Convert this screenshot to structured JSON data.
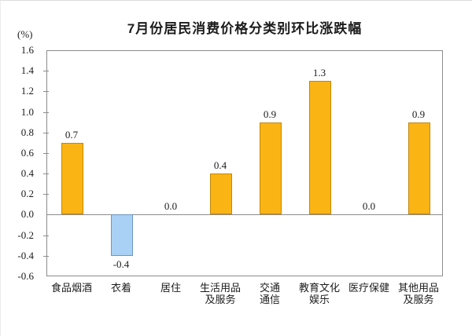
{
  "chart_data": {
    "type": "bar",
    "title": "7月份居民消费价格分类别环比涨跌幅",
    "ylabel": "(%)",
    "xlabel": "",
    "categories": [
      "食品烟酒",
      "衣着",
      "居住",
      "生活用品\n及服务",
      "交通\n通信",
      "教育文化\n娱乐",
      "医疗保健",
      "其他用品\n及服务"
    ],
    "values": [
      0.7,
      -0.4,
      0.0,
      0.4,
      0.9,
      1.3,
      0.0,
      0.9
    ],
    "value_labels": [
      "0.7",
      "-0.4",
      "0.0",
      "0.4",
      "0.9",
      "1.3",
      "0.0",
      "0.9"
    ],
    "ylim": [
      -0.6,
      1.6
    ],
    "ytick_step": 0.2,
    "ytick_labels": [
      "1.6",
      "1.4",
      "1.2",
      "1.0",
      "0.8",
      "0.6",
      "0.4",
      "0.2",
      "0.0",
      "-0.2",
      "-0.4",
      "-0.6"
    ],
    "grid": false,
    "legend": false,
    "colors": {
      "bar_positive_fill": "#FAB414",
      "bar_positive_border": "#C3870A",
      "bar_negative_fill": "#A8D1F5",
      "bar_negative_border": "#6E96BE",
      "axis": "#8c8c8c",
      "text": "#1c1c1c"
    }
  }
}
